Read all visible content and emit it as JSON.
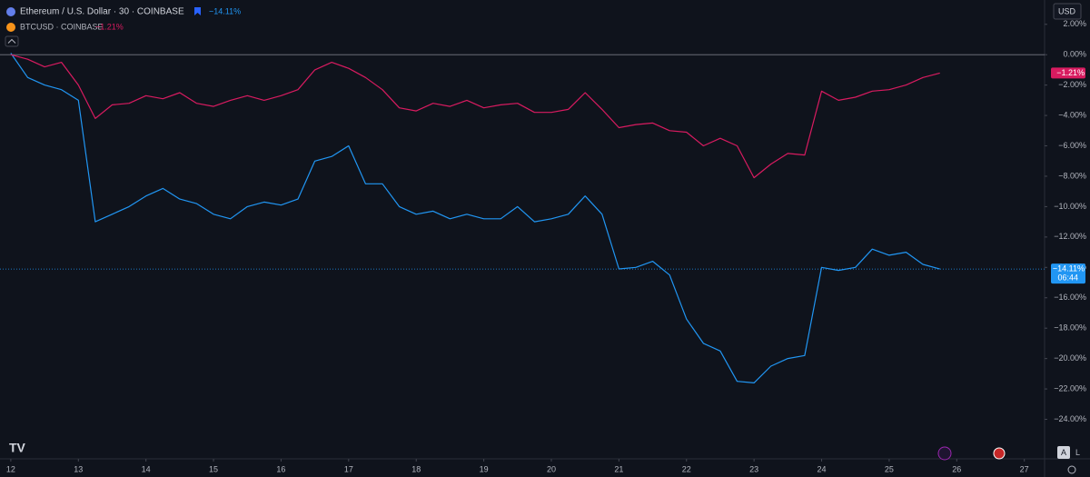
{
  "chart_data": {
    "type": "line",
    "title": "Ethereum / U.S. Dollar · 30 · COINBASE",
    "currency": "USD",
    "countdown": "06:44",
    "buttons": [
      "A",
      "L"
    ],
    "x": [
      12,
      12.25,
      12.5,
      12.75,
      13,
      13.25,
      13.5,
      13.75,
      14,
      14.25,
      14.5,
      14.75,
      15,
      15.25,
      15.5,
      15.75,
      16,
      16.25,
      16.5,
      16.75,
      17,
      17.25,
      17.5,
      17.75,
      18,
      18.25,
      18.5,
      18.75,
      19,
      19.25,
      19.5,
      19.75,
      20,
      20.25,
      20.5,
      20.75,
      21,
      21.25,
      21.5,
      21.75,
      22,
      22.25,
      22.5,
      22.75,
      23,
      23.25,
      23.5,
      23.75,
      24,
      24.25,
      24.5,
      24.75,
      25,
      25.25,
      25.5,
      25.75
    ],
    "xlim": [
      11.84,
      27.3
    ],
    "xticks": [
      12,
      13,
      14,
      15,
      16,
      17,
      18,
      19,
      20,
      21,
      22,
      23,
      24,
      25,
      26,
      27
    ],
    "ylim": [
      -26.6,
      3.6
    ],
    "yticks": [
      {
        "value": 2,
        "label": "2.00%"
      },
      {
        "value": 0,
        "label": "0.00%"
      },
      {
        "value": -2,
        "label": "−2.00%"
      },
      {
        "value": -4,
        "label": "−4.00%"
      },
      {
        "value": -6,
        "label": "−6.00%"
      },
      {
        "value": -8,
        "label": "−8.00%"
      },
      {
        "value": -10,
        "label": "−10.00%"
      },
      {
        "value": -12,
        "label": "−12.00%"
      },
      {
        "value": -14,
        "label": "−14.00%"
      },
      {
        "value": -16,
        "label": "−16.00%"
      },
      {
        "value": -18,
        "label": "−18.00%"
      },
      {
        "value": -20,
        "label": "−20.00%"
      },
      {
        "value": -22,
        "label": "−22.00%"
      },
      {
        "value": -24,
        "label": "−24.00%"
      }
    ],
    "grid": false,
    "series": [
      {
        "name": "Ethereum / U.S. Dollar · 30 · COINBASE",
        "color": "#2196f3",
        "last_label": "−14.11%",
        "values": [
          0.1,
          -1.5,
          -2,
          -2.3,
          -3,
          -11,
          -10.5,
          -10,
          -9.3,
          -8.8,
          -9.5,
          -9.8,
          -10.5,
          -10.8,
          -10,
          -9.7,
          -9.9,
          -9.5,
          -7,
          -6.7,
          -6,
          -8.5,
          -8.5,
          -10,
          -10.5,
          -10.3,
          -10.8,
          -10.5,
          -10.8,
          -10.8,
          -10,
          -11,
          -10.8,
          -10.5,
          -9.3,
          -10.5,
          -14.1,
          -14,
          -13.6,
          -14.5,
          -17.4,
          -19,
          -19.5,
          -21.5,
          -21.6,
          -20.5,
          -20,
          -19.8,
          -14,
          -14.2,
          -14,
          -12.8,
          -13.2,
          -13,
          -13.8,
          -14.11
        ]
      },
      {
        "name": "BTCUSD · COINBASE",
        "color": "#d81b60",
        "last_label": "−1.21%",
        "values": [
          0,
          -0.3,
          -0.8,
          -0.5,
          -2,
          -4.2,
          -3.3,
          -3.2,
          -2.7,
          -2.9,
          -2.5,
          -3.2,
          -3.4,
          -3,
          -2.7,
          -3,
          -2.7,
          -2.3,
          -1,
          -0.5,
          -0.9,
          -1.5,
          -2.3,
          -3.5,
          -3.7,
          -3.2,
          -3.4,
          -3,
          -3.5,
          -3.3,
          -3.2,
          -3.8,
          -3.8,
          -3.6,
          -2.5,
          -3.6,
          -4.8,
          -4.6,
          -4.5,
          -5,
          -5.1,
          -6,
          -5.5,
          -6,
          -8.1,
          -7.2,
          -6.5,
          -6.6,
          -2.4,
          -3,
          -2.8,
          -2.4,
          -2.3,
          -2,
          -1.5,
          -1.21
        ]
      }
    ]
  }
}
